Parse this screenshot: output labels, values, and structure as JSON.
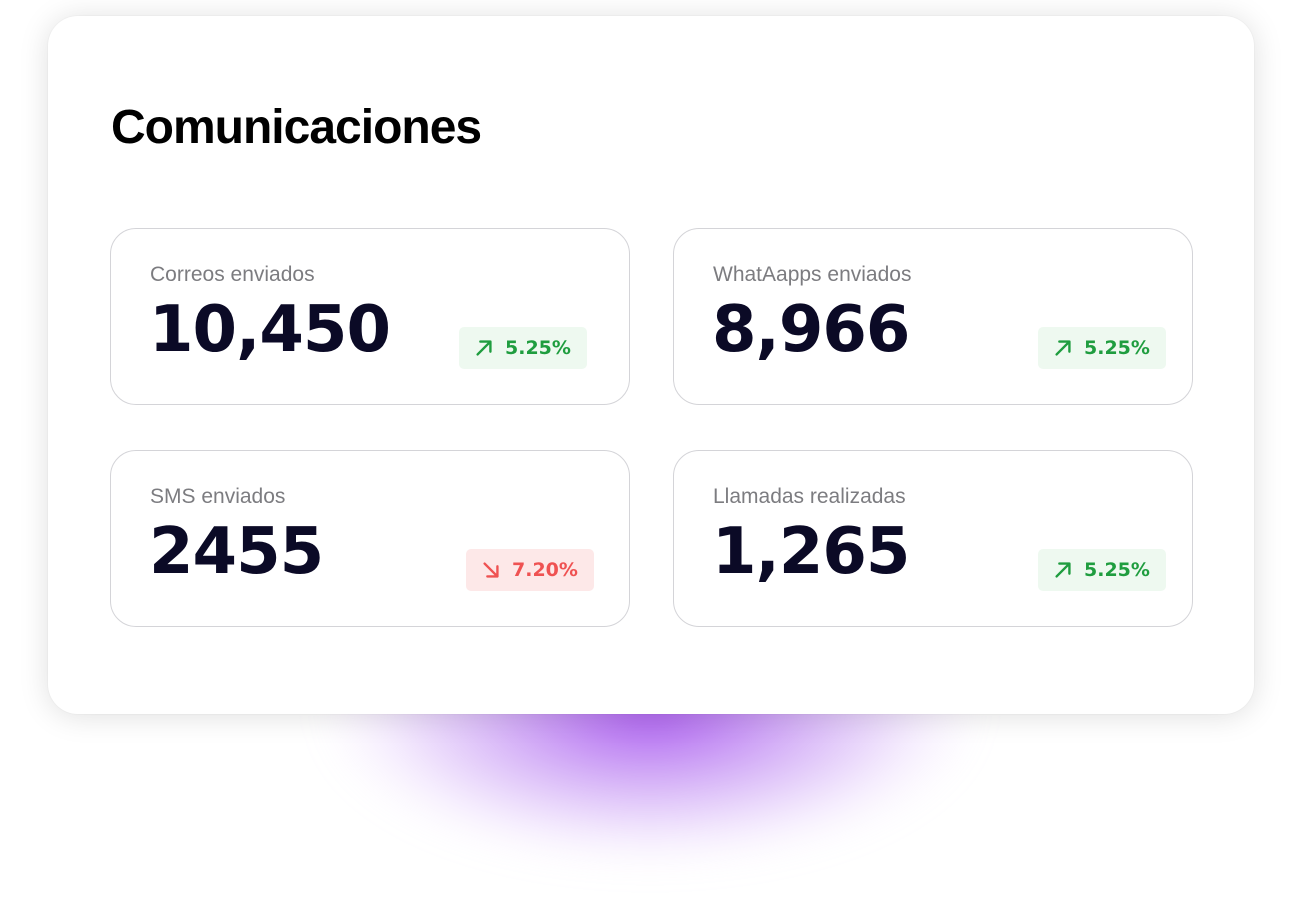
{
  "title": "Comunicaciones",
  "stats": [
    {
      "label": "Correos enviados",
      "value": "10,450",
      "change": "5.25%",
      "trend": "up",
      "trend_icon": "arrow-up-right-icon"
    },
    {
      "label": "WhatAapps enviados",
      "value": "8,966",
      "change": "5.25%",
      "trend": "up",
      "trend_icon": "arrow-up-right-icon"
    },
    {
      "label": "SMS enviados",
      "value": "2455",
      "change": "7.20%",
      "trend": "down",
      "trend_icon": "arrow-down-right-icon"
    },
    {
      "label": "Llamadas realizadas",
      "value": "1,265",
      "change": "5.25%",
      "trend": "up",
      "trend_icon": "arrow-up-right-icon"
    }
  ],
  "colors": {
    "positive": "#1f9d3f",
    "positive_bg": "#eef9f0",
    "negative": "#ef5252",
    "negative_bg": "#fde8e8",
    "value_text": "#0b0a26",
    "glow": "#9c40ec"
  }
}
